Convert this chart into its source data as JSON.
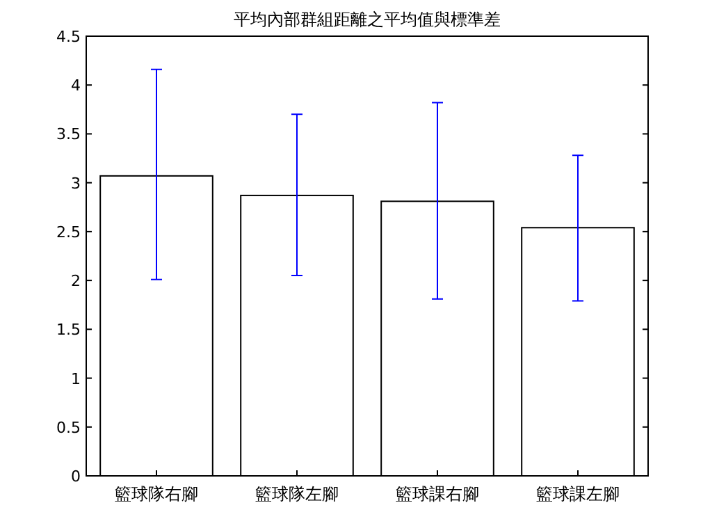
{
  "chart_data": {
    "type": "bar",
    "title": "平均內部群組距離之平均值與標準差",
    "categories": [
      "籃球隊右腳",
      "籃球隊左腳",
      "籃球課右腳",
      "籃球課左腳"
    ],
    "values": [
      3.07,
      2.87,
      2.81,
      2.54
    ],
    "errors": [
      [
        2.01,
        4.16
      ],
      [
        2.05,
        3.7
      ],
      [
        1.81,
        3.82
      ],
      [
        1.79,
        3.28
      ]
    ],
    "color": "#ffffff",
    "ylim": [
      0,
      4.5
    ],
    "yticks": [
      0,
      0.5,
      1,
      1.5,
      2,
      2.5,
      3,
      3.5,
      4,
      4.5
    ],
    "grid": false
  }
}
